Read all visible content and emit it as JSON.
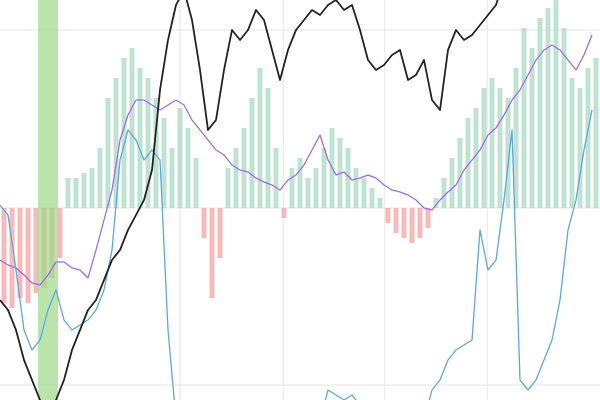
{
  "chart_data": {
    "type": "line",
    "x": [
      0,
      1,
      2,
      3,
      4,
      5,
      6,
      7,
      8,
      9,
      10,
      11,
      12,
      13,
      14,
      15,
      16,
      17,
      18,
      19,
      20,
      21,
      22,
      23,
      24,
      25,
      26,
      27,
      28,
      29,
      30,
      31,
      32,
      33,
      34,
      35,
      36,
      37,
      38,
      39,
      40,
      41,
      42,
      43,
      44,
      45,
      46,
      47,
      48,
      49,
      50,
      51,
      52,
      53,
      54,
      55,
      56,
      57,
      58,
      59,
      60,
      61,
      62,
      63,
      64,
      65,
      66,
      67,
      68,
      69,
      70,
      71,
      72,
      73,
      74
    ],
    "xlim": [
      0,
      75
    ],
    "ylim": [
      -192,
      208
    ],
    "xticks": [
      22.5,
      35.4,
      48.1,
      60.9
    ],
    "yticks": [
      -177,
      0,
      178
    ],
    "grid": true,
    "highlight": [
      4.75,
      7.25
    ],
    "highlight_color": "#9ed98a",
    "bars": {
      "positive_color": "#a9d8c4",
      "negative_color": "#f4a3a3",
      "values": [
        -95,
        -100,
        -90,
        -95,
        -85,
        -80,
        -70,
        -50,
        30,
        30,
        35,
        40,
        60,
        110,
        130,
        150,
        160,
        140,
        130,
        110,
        90,
        60,
        100,
        80,
        50,
        -30,
        -90,
        -50,
        40,
        60,
        80,
        110,
        140,
        120,
        60,
        -10,
        40,
        50,
        30,
        40,
        60,
        80,
        70,
        60,
        40,
        30,
        20,
        10,
        -15,
        -25,
        -30,
        -35,
        -30,
        -20,
        10,
        30,
        50,
        70,
        90,
        100,
        120,
        130,
        120,
        110,
        140,
        180,
        160,
        190,
        200,
        210,
        180,
        130,
        120,
        140,
        150
      ]
    },
    "series": [
      {
        "color": "#5aa8e0",
        "values": [
          3,
          -7,
          -62,
          -122,
          -142,
          -132,
          -102,
          -82,
          -112,
          -122,
          -117,
          -112,
          -102,
          -82,
          -42,
          48,
          78,
          68,
          48,
          58,
          48,
          -122,
          -212,
          -212,
          -212,
          -212,
          -212,
          -212,
          -212,
          -212,
          -212,
          -212,
          -212,
          -212,
          -212,
          -212,
          -212,
          -212,
          -212,
          -212,
          -212,
          -182,
          -187,
          -192,
          -187,
          -197,
          -202,
          -207,
          -212,
          -212,
          -212,
          -212,
          -212,
          -212,
          -182,
          -172,
          -152,
          -142,
          -137,
          -132,
          -22,
          -62,
          -52,
          8,
          78,
          -172,
          -182,
          -172,
          -152,
          -132,
          -92,
          -22,
          8,
          58,
          98
        ]
      },
      {
        "color": "#9b6ee8",
        "values": [
          -52,
          -57,
          -60,
          -67,
          -75,
          -77,
          -67,
          -54,
          -54,
          -60,
          -62,
          -70,
          -42,
          -12,
          18,
          68,
          93,
          108,
          108,
          103,
          98,
          103,
          108,
          103,
          88,
          78,
          68,
          58,
          53,
          43,
          38,
          36,
          30,
          26,
          23,
          18,
          28,
          33,
          43,
          58,
          73,
          48,
          33,
          36,
          28,
          30,
          33,
          30,
          23,
          18,
          16,
          13,
          8,
          0,
          -2,
          8,
          16,
          23,
          38,
          48,
          58,
          73,
          80,
          93,
          108,
          118,
          133,
          148,
          158,
          163,
          158,
          148,
          138,
          153,
          173
        ]
      },
      {
        "color": "#222222",
        "values": [
          -92,
          -102,
          -122,
          -152,
          -172,
          -192,
          -202,
          -192,
          -172,
          -142,
          -122,
          -102,
          -92,
          -72,
          -52,
          -42,
          -22,
          -7,
          8,
          38,
          118,
          168,
          203,
          218,
          188,
          138,
          78,
          88,
          138,
          178,
          168,
          178,
          198,
          188,
          158,
          128,
          158,
          178,
          188,
          198,
          193,
          203,
          208,
          198,
          203,
          178,
          148,
          138,
          143,
          153,
          158,
          128,
          133,
          148,
          108,
          98,
          158,
          178,
          168,
          173,
          183,
          193,
          203,
          228,
          null,
          null,
          null,
          null,
          null,
          null,
          null,
          null,
          null,
          null,
          null
        ]
      }
    ]
  }
}
